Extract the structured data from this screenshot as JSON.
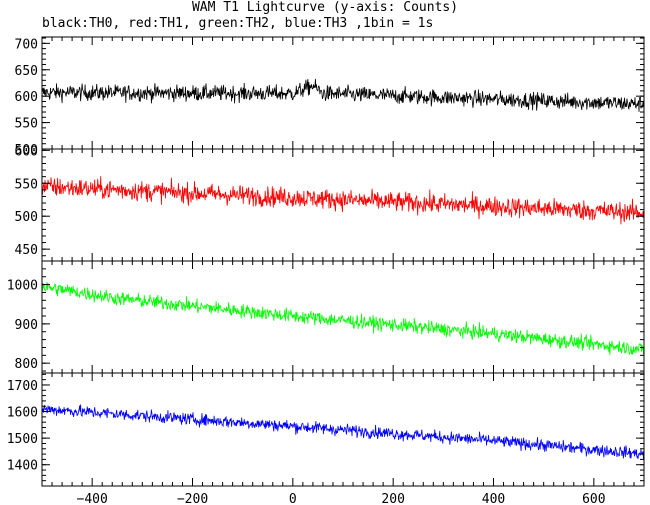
{
  "title": "WAM T1 Lightcurve (y-axis: Counts)",
  "subtitle": "black:TH0, red:TH1, green:TH2, blue:TH3 ,1bin = 1s",
  "chart_data": {
    "type": "line",
    "x_range": [
      -500,
      700
    ],
    "x_ticks": [
      -400,
      -200,
      0,
      200,
      400,
      600
    ],
    "x_tick_labels": [
      "−400",
      "−200",
      "0",
      "200",
      "400",
      "600"
    ],
    "panels": [
      {
        "series": "TH0",
        "color": "#000000",
        "ylim": [
          500,
          712
        ],
        "y_ticks": [
          500,
          550,
          600,
          650,
          700
        ],
        "y_tick_labels": [
          "500",
          "550",
          "600",
          "650",
          "700"
        ],
        "trend": {
          "x": [
            -500,
            0,
            40,
            60,
            700
          ],
          "y": [
            607,
            605,
            620,
            605,
            585
          ]
        },
        "noise_amplitude": 30
      },
      {
        "series": "TH1",
        "color": "#ff0000",
        "ylim": [
          432,
          602
        ],
        "y_ticks": [
          450,
          500,
          550,
          600
        ],
        "y_tick_labels": [
          "450",
          "500",
          "550",
          "600"
        ],
        "trend": {
          "x": [
            -500,
            700
          ],
          "y": [
            545,
            505
          ]
        },
        "noise_amplitude": 30
      },
      {
        "series": "TH2",
        "color": "#00ff00",
        "ylim": [
          775,
          1060
        ],
        "y_ticks": [
          800,
          900,
          1000
        ],
        "y_tick_labels": [
          "800",
          "900",
          "1000"
        ],
        "trend": {
          "x": [
            -500,
            -350,
            0,
            400,
            700
          ],
          "y": [
            995,
            965,
            920,
            875,
            835
          ]
        },
        "noise_amplitude": 35
      },
      {
        "series": "TH3",
        "color": "#0000ff",
        "ylim": [
          1320,
          1745
        ],
        "y_ticks": [
          1400,
          1500,
          1600,
          1700
        ],
        "y_tick_labels": [
          "1400",
          "1500",
          "1600",
          "1700"
        ],
        "trend": {
          "x": [
            -500,
            0,
            400,
            700
          ],
          "y": [
            1610,
            1545,
            1490,
            1440
          ]
        },
        "noise_amplitude": 45
      }
    ]
  }
}
